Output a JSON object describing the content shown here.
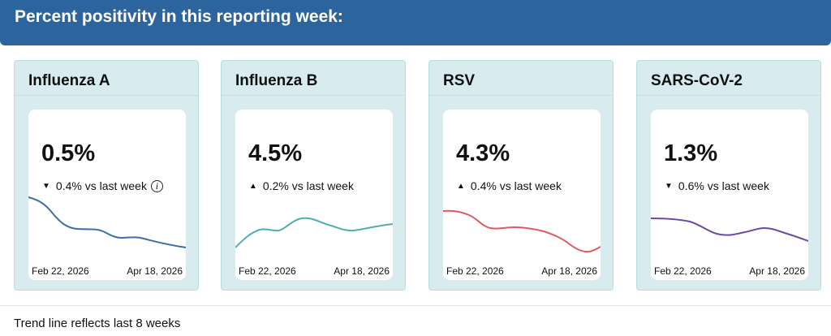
{
  "header": {
    "title": "Percent positivity in this reporting week:"
  },
  "cards": [
    {
      "name": "Influenza A",
      "percent": "0.5%",
      "direction": "down",
      "arrow": "▼",
      "change": "0.4% vs last week",
      "has_info": true,
      "info_icon": "info-icon",
      "color": "#3f6ea6",
      "start_date": "Feb 22, 2026",
      "end_date": "Apr 18, 2026"
    },
    {
      "name": "Influenza B",
      "percent": "4.5%",
      "direction": "up",
      "arrow": "▲",
      "change": "0.2% vs last week",
      "has_info": false,
      "color": "#4faeb0",
      "start_date": "Feb 22, 2026",
      "end_date": "Apr 18, 2026"
    },
    {
      "name": "RSV",
      "percent": "4.3%",
      "direction": "up",
      "arrow": "▲",
      "change": "0.4% vs last week",
      "has_info": false,
      "color": "#e05a5f",
      "start_date": "Feb 22, 2026",
      "end_date": "Apr 18, 2026"
    },
    {
      "name": "SARS-CoV-2",
      "percent": "1.3%",
      "direction": "down",
      "arrow": "▼",
      "change": "0.6% vs last week",
      "has_info": false,
      "color": "#6a4aa8",
      "start_date": "Feb 22, 2026",
      "end_date": "Apr 18, 2026"
    }
  ],
  "footer": {
    "text": "Trend line reflects last 8 weeks"
  }
}
